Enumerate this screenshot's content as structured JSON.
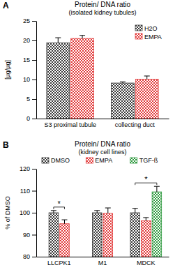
{
  "chart_data": [
    {
      "type": "bar",
      "panel_label": "A",
      "title": "Protein/ DNA ratio",
      "subtitle": "(isolated kidney tubules)",
      "y_label": "[µg/µg]",
      "categories": [
        "S3 proximal tubule",
        "collecting duct"
      ],
      "series": [
        {
          "name": "H2O",
          "color": "#3a3a3a",
          "values": [
            19.4,
            9.1
          ],
          "errors": [
            1.3,
            0.3
          ]
        },
        {
          "name": "EMPA",
          "color": "#e23a3a",
          "values": [
            20.5,
            10.1
          ],
          "errors": [
            0.8,
            0.8
          ]
        }
      ],
      "ylim": [
        0,
        25
      ],
      "yticks": [
        0,
        5,
        10,
        15,
        20,
        25
      ],
      "legend": "upper right"
    },
    {
      "type": "bar",
      "panel_label": "B",
      "title": "Protein/ DNA ratio",
      "subtitle": "(kidney cell lines)",
      "y_label": "% of DMSO",
      "categories": [
        "LLCPK1",
        "M1",
        "MDCK"
      ],
      "series": [
        {
          "name": "DMSO",
          "color": "#3a3a3a",
          "values": [
            100,
            100,
            100
          ],
          "errors": [
            1.0,
            1.0,
            2.0
          ]
        },
        {
          "name": "EMPA",
          "color": "#e23a3a",
          "values": [
            95.0,
            99.7,
            96.3
          ],
          "errors": [
            1.8,
            2.5,
            1.5
          ]
        },
        {
          "name": "TGF-ß",
          "color": "#2f9a3f",
          "values": [
            null,
            null,
            109.5
          ],
          "errors": [
            null,
            null,
            2.5
          ]
        }
      ],
      "ylim": [
        80,
        120
      ],
      "yticks": [
        80,
        90,
        100,
        110,
        120
      ],
      "legend": "top",
      "annotations": [
        "*",
        "*"
      ]
    }
  ]
}
